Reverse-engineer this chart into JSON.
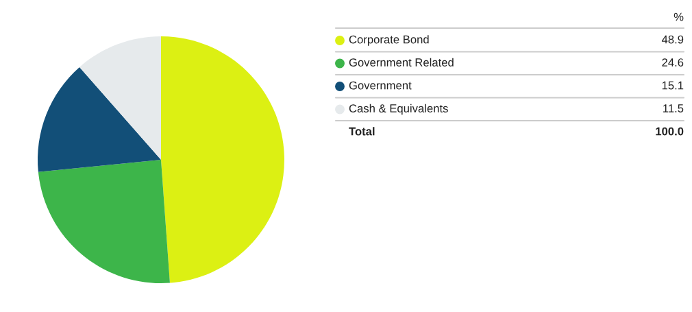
{
  "chart_data": {
    "type": "pie",
    "categories": [
      "Corporate Bond",
      "Government Related",
      "Government",
      "Cash & Equivalents"
    ],
    "values": [
      48.9,
      24.6,
      15.1,
      11.5
    ],
    "colors": [
      "#dcf013",
      "#3db54a",
      "#124f78",
      "#e6eaec"
    ],
    "legend_title": "%",
    "legend": "right",
    "data_labels": true,
    "annotations": [
      "Total"
    ],
    "totals": [
      "100.0"
    ]
  }
}
